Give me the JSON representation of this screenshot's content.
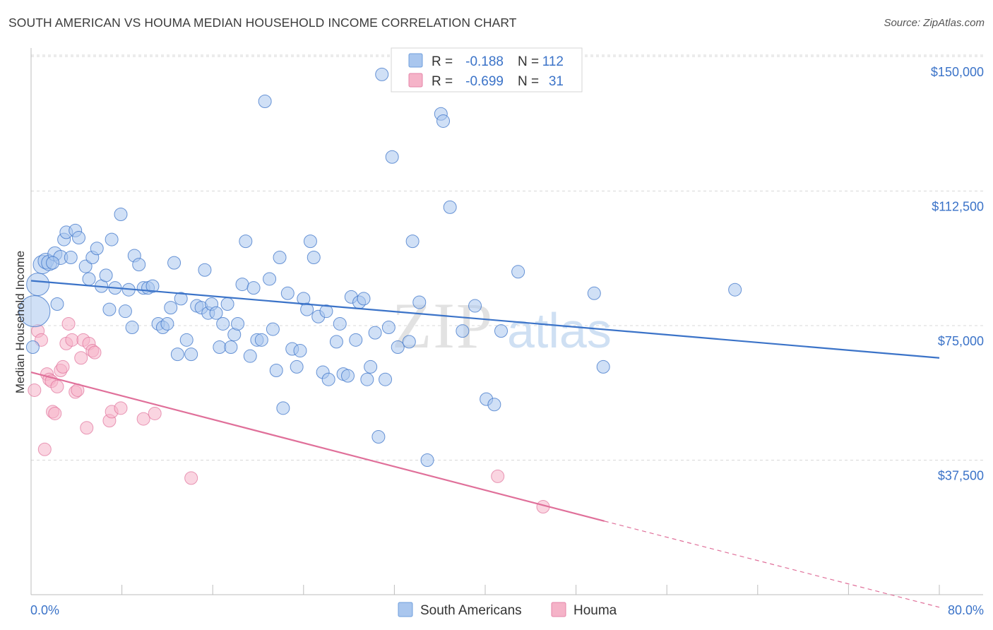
{
  "title": "SOUTH AMERICAN VS HOUMA MEDIAN HOUSEHOLD INCOME CORRELATION CHART",
  "source": "Source: ZipAtlas.com",
  "watermark": {
    "zip": "ZIP",
    "atlas": "atlas"
  },
  "colors": {
    "blue": "#3b73c8",
    "blue_fill": "#a9c6ee",
    "pink": "#e0709a",
    "pink_fill": "#f5b3c8",
    "grid": "#d8d8d8"
  },
  "legend": {
    "rows": [
      {
        "r_label": "R =",
        "r_value": "-0.188",
        "n_label": "N =",
        "n_value": "112"
      },
      {
        "r_label": "R =",
        "r_value": "-0.699",
        "n_label": "N =",
        "n_value": "31"
      }
    ]
  },
  "chart_data": {
    "type": "scatter",
    "xlabel": "",
    "ylabel": "Median Household Income",
    "xlim": [
      0,
      80
    ],
    "ylim": [
      0,
      157500
    ],
    "x_tick_labels": {
      "left": "0.0%",
      "right": "80.0%"
    },
    "y_ticks": [
      {
        "value": 37500,
        "label": "$37,500"
      },
      {
        "value": 75000,
        "label": "$75,000"
      },
      {
        "value": 112500,
        "label": "$112,500"
      },
      {
        "value": 150000,
        "label": "$150,000"
      }
    ],
    "series": [
      {
        "name": "South Americans",
        "trend": {
          "x0": 0,
          "y0": 87500,
          "x1": 80,
          "y1": 66000
        },
        "points": [
          [
            0.3,
            79000
          ],
          [
            0.6,
            86500
          ],
          [
            1.0,
            92000
          ],
          [
            1.3,
            93000
          ],
          [
            1.6,
            92500
          ],
          [
            2.1,
            95000
          ],
          [
            2.6,
            94000
          ],
          [
            2.9,
            99000
          ],
          [
            3.1,
            101000
          ],
          [
            3.5,
            94000
          ],
          [
            3.9,
            101500
          ],
          [
            4.2,
            99500
          ],
          [
            4.8,
            91500
          ],
          [
            5.1,
            88000
          ],
          [
            5.4,
            94000
          ],
          [
            5.8,
            96500
          ],
          [
            6.2,
            86000
          ],
          [
            6.6,
            89000
          ],
          [
            7.1,
            99000
          ],
          [
            7.4,
            85500
          ],
          [
            7.9,
            106000
          ],
          [
            8.3,
            79000
          ],
          [
            8.6,
            85000
          ],
          [
            9.1,
            94500
          ],
          [
            9.5,
            92000
          ],
          [
            9.9,
            85500
          ],
          [
            10.3,
            85500
          ],
          [
            10.7,
            86000
          ],
          [
            11.2,
            75500
          ],
          [
            11.6,
            74500
          ],
          [
            12.0,
            75500
          ],
          [
            12.3,
            80000
          ],
          [
            12.6,
            92500
          ],
          [
            12.9,
            67000
          ],
          [
            13.2,
            82500
          ],
          [
            13.7,
            71000
          ],
          [
            14.1,
            67000
          ],
          [
            14.6,
            80500
          ],
          [
            15.0,
            80000
          ],
          [
            15.3,
            90500
          ],
          [
            15.6,
            78500
          ],
          [
            15.9,
            81000
          ],
          [
            16.3,
            78500
          ],
          [
            16.6,
            69000
          ],
          [
            16.9,
            75500
          ],
          [
            17.3,
            81000
          ],
          [
            17.6,
            69000
          ],
          [
            17.9,
            72500
          ],
          [
            18.2,
            75500
          ],
          [
            18.6,
            86500
          ],
          [
            18.9,
            98500
          ],
          [
            19.3,
            66500
          ],
          [
            19.6,
            85500
          ],
          [
            19.9,
            71000
          ],
          [
            20.3,
            71000
          ],
          [
            20.6,
            137500
          ],
          [
            21.0,
            88000
          ],
          [
            21.3,
            74000
          ],
          [
            21.6,
            62500
          ],
          [
            21.9,
            94000
          ],
          [
            22.2,
            52000
          ],
          [
            22.6,
            84000
          ],
          [
            23.0,
            68500
          ],
          [
            23.4,
            63500
          ],
          [
            23.7,
            68000
          ],
          [
            24.0,
            82500
          ],
          [
            24.3,
            79500
          ],
          [
            24.6,
            98500
          ],
          [
            24.9,
            94000
          ],
          [
            25.3,
            77500
          ],
          [
            25.7,
            62000
          ],
          [
            26.0,
            79000
          ],
          [
            26.2,
            60000
          ],
          [
            26.9,
            70500
          ],
          [
            27.2,
            75500
          ],
          [
            27.5,
            61500
          ],
          [
            27.9,
            61000
          ],
          [
            28.2,
            83000
          ],
          [
            28.6,
            71000
          ],
          [
            28.9,
            81500
          ],
          [
            29.3,
            82500
          ],
          [
            29.6,
            60000
          ],
          [
            29.9,
            63500
          ],
          [
            30.3,
            73000
          ],
          [
            30.6,
            44000
          ],
          [
            30.9,
            145000
          ],
          [
            31.2,
            60000
          ],
          [
            31.5,
            74500
          ],
          [
            31.8,
            122000
          ],
          [
            32.3,
            69000
          ],
          [
            33.3,
            70500
          ],
          [
            33.6,
            98500
          ],
          [
            34.2,
            81500
          ],
          [
            34.9,
            37500
          ],
          [
            36.1,
            134000
          ],
          [
            36.3,
            132000
          ],
          [
            36.9,
            108000
          ],
          [
            38.0,
            73500
          ],
          [
            39.1,
            80500
          ],
          [
            40.1,
            54500
          ],
          [
            40.8,
            53000
          ],
          [
            41.4,
            73500
          ],
          [
            42.9,
            90000
          ],
          [
            49.6,
            84000
          ],
          [
            50.4,
            63500
          ],
          [
            62.0,
            85000
          ],
          [
            0.15,
            69000
          ],
          [
            2.3,
            81000
          ],
          [
            6.9,
            79500
          ],
          [
            8.9,
            74500
          ],
          [
            1.9,
            92500
          ]
        ],
        "radii": [
          22,
          16,
          13,
          11,
          11,
          10,
          10,
          9,
          9,
          9,
          9,
          9,
          9,
          9,
          9,
          9,
          9,
          9,
          9,
          9,
          9,
          9,
          9,
          9,
          9,
          9,
          9,
          9,
          9,
          9,
          9,
          9,
          9,
          9,
          9,
          9,
          9,
          9,
          9,
          9,
          9,
          9,
          9,
          9,
          9,
          9,
          9,
          9,
          9,
          9,
          9,
          9,
          9,
          9,
          9,
          9,
          9,
          9,
          9,
          9,
          9,
          9,
          9,
          9,
          9,
          9,
          9,
          9,
          9,
          9,
          9,
          9,
          9,
          9,
          9,
          9,
          9,
          9,
          9,
          9,
          9,
          9,
          9,
          9,
          9,
          9,
          9,
          9,
          9,
          9,
          9,
          9,
          9,
          9,
          9,
          9,
          9,
          9,
          9,
          9,
          9,
          9,
          9,
          9,
          9,
          9,
          9,
          9,
          9,
          9,
          9,
          9
        ]
      },
      {
        "name": "Houma",
        "trend": {
          "x0": 0,
          "y0": 62000,
          "x1": 50.5,
          "y1": 20500
        },
        "trend_dashed": {
          "x0": 50.5,
          "y0": 20500,
          "x1": 80,
          "y1": -3500
        },
        "points": [
          [
            0.3,
            57000
          ],
          [
            0.6,
            73500
          ],
          [
            0.9,
            71000
          ],
          [
            1.2,
            40500
          ],
          [
            1.4,
            61500
          ],
          [
            1.6,
            60000
          ],
          [
            1.8,
            59500
          ],
          [
            1.9,
            51000
          ],
          [
            2.1,
            50500
          ],
          [
            2.3,
            58000
          ],
          [
            2.6,
            62500
          ],
          [
            2.8,
            63500
          ],
          [
            3.1,
            70000
          ],
          [
            3.3,
            75500
          ],
          [
            3.6,
            71000
          ],
          [
            3.9,
            56500
          ],
          [
            4.1,
            57000
          ],
          [
            4.4,
            66000
          ],
          [
            4.6,
            71000
          ],
          [
            4.9,
            46500
          ],
          [
            5.1,
            70000
          ],
          [
            5.4,
            68000
          ],
          [
            5.6,
            67500
          ],
          [
            6.9,
            48500
          ],
          [
            7.1,
            51000
          ],
          [
            7.9,
            52000
          ],
          [
            9.9,
            49000
          ],
          [
            10.9,
            50500
          ],
          [
            14.1,
            32500
          ],
          [
            41.1,
            33000
          ],
          [
            45.1,
            24500
          ]
        ]
      }
    ],
    "grid": true,
    "legend_position": "top-center"
  },
  "bottom_legend": [
    {
      "label": "South Americans"
    },
    {
      "label": "Houma"
    }
  ]
}
